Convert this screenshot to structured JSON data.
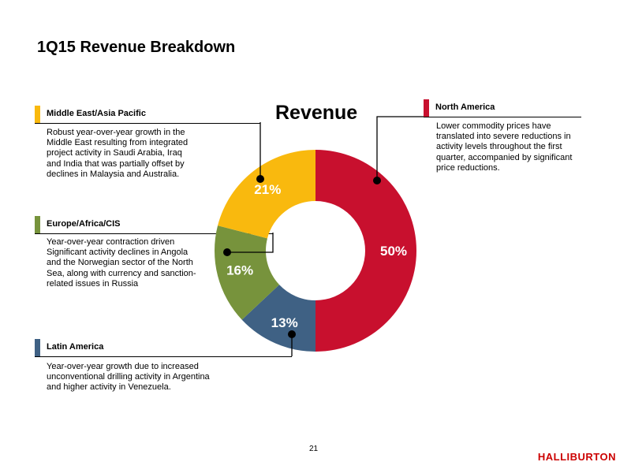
{
  "page": {
    "title": "1Q15 Revenue Breakdown",
    "page_number": "21",
    "logo_text": "HALLIBURTON"
  },
  "regions": [
    {
      "name": "Middle East/Asia Pacific",
      "lines": [
        "Robust year-over-year growth in the",
        "Middle East resulting from integrated",
        "project activity in Saudi Arabia, Iraq",
        "and India that was partially offset by",
        "declines in Malaysia and Australia."
      ]
    },
    {
      "name": "Europe/Africa/CIS",
      "lines": [
        "Year-over-year contraction driven",
        "Significant activity declines in Angola",
        "and the Norwegian sector of the North",
        "Sea, along with currency and sanction-",
        "related issues in Russia"
      ]
    },
    {
      "name": "Latin America",
      "lines": [
        "Year-over-year growth due to increased",
        "unconventional drilling activity in Argentina",
        "and higher activity in Venezuela."
      ]
    },
    {
      "name": "North America",
      "lines": [
        "Lower commodity prices have",
        "translated into severe reductions in",
        "activity levels throughout the first",
        "quarter, accompanied by significant",
        "price reductions."
      ]
    }
  ],
  "chart_data": {
    "type": "pie",
    "title": "Revenue",
    "donut": true,
    "slices": [
      {
        "label": "North America",
        "value": 50,
        "display": "50%",
        "color": "#c8102e"
      },
      {
        "label": "Latin America",
        "value": 13,
        "display": "13%",
        "color": "#3f6184"
      },
      {
        "label": "Europe/Africa/CIS",
        "value": 16,
        "display": "16%",
        "color": "#77933c"
      },
      {
        "label": "Middle East/Asia Pacific",
        "value": 21,
        "display": "21%",
        "color": "#f9b90e"
      }
    ],
    "start_angle_deg": 0,
    "direction": "clockwise"
  }
}
